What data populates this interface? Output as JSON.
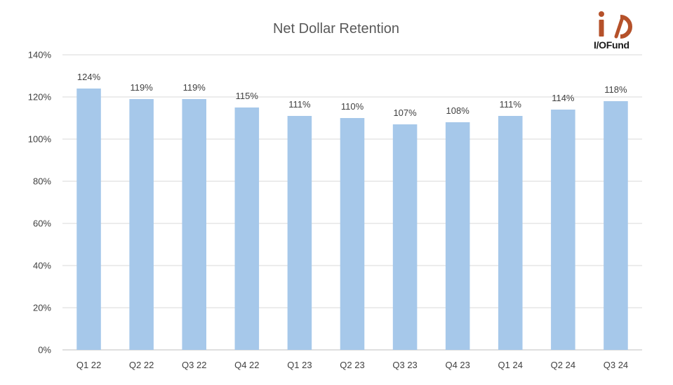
{
  "brand": {
    "name": "I/OFund",
    "colors": {
      "primary": "#b5512a",
      "text": "#1a1a1a"
    }
  },
  "chart_data": {
    "type": "bar",
    "title": "Net Dollar Retention",
    "categories": [
      "Q1 22",
      "Q2 22",
      "Q3 22",
      "Q4 22",
      "Q1 23",
      "Q2 23",
      "Q3 23",
      "Q4 23",
      "Q1 24",
      "Q2 24",
      "Q3 24"
    ],
    "values": [
      124,
      119,
      119,
      115,
      111,
      110,
      107,
      108,
      111,
      114,
      118
    ],
    "value_suffix": "%",
    "ylim": [
      0,
      140
    ],
    "yticks": [
      0,
      20,
      40,
      60,
      80,
      100,
      120,
      140
    ],
    "grid": true,
    "legend": "none",
    "colors": {
      "bar": "#a6c8ea",
      "grid": "#d9d9d9",
      "axis": "#bfbfbf"
    }
  }
}
